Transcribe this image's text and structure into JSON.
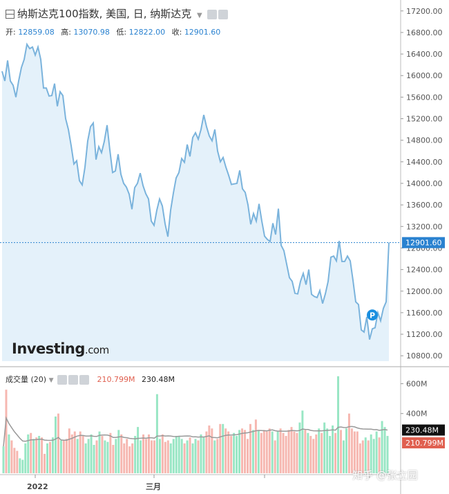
{
  "header": {
    "title": "纳斯达克100指数, 美国, 日, 纳斯达克",
    "ohlc": [
      {
        "label": "开",
        "value": "12859.08"
      },
      {
        "label": "高",
        "value": "13070.98"
      },
      {
        "label": "低",
        "value": "12822.00"
      },
      {
        "label": "收",
        "value": "12901.60"
      }
    ]
  },
  "volume_header": {
    "label": "成交量 (20)",
    "value_a": "210.799M",
    "value_b": "230.48M"
  },
  "logo": {
    "main": "Investing",
    "suffix": ".com"
  },
  "watermark": "知乎 @张立园",
  "colors": {
    "line": "#7ab3dc",
    "area": "#e4f1fa",
    "up": "#98e6c4",
    "down": "#f6b7b0",
    "ma": "#999999",
    "price_tag": "#2a82d0",
    "vol_tag": "#e06050"
  },
  "chart_data": [
    {
      "type": "area",
      "x": [
        0,
        1,
        2,
        3,
        4,
        5,
        6,
        7,
        8,
        9,
        10,
        11,
        12,
        13,
        14,
        15,
        16,
        17,
        18,
        19,
        20,
        21,
        22,
        23,
        24,
        25,
        26,
        27,
        28,
        29,
        30,
        31,
        32,
        33,
        34,
        35,
        36,
        37,
        38,
        39,
        40,
        41,
        42,
        43,
        44,
        45,
        46,
        47,
        48,
        49,
        50,
        51,
        52,
        53,
        54,
        55,
        56,
        57,
        58,
        59,
        60,
        61,
        62,
        63,
        64,
        65,
        66,
        67,
        68,
        69,
        70,
        71,
        72,
        73,
        74,
        75,
        76,
        77,
        78,
        79,
        80,
        81,
        82,
        83,
        84,
        85,
        86,
        87,
        88,
        89,
        90,
        91,
        92,
        93,
        94,
        95,
        96,
        97,
        98,
        99,
        100,
        101,
        102,
        103,
        104,
        105,
        106,
        107,
        108,
        109,
        110,
        111,
        112,
        113,
        114,
        115,
        116,
        117,
        118,
        119,
        120,
        121,
        122,
        123,
        124,
        125,
        126,
        127,
        128,
        129,
        130,
        131,
        132,
        133,
        134,
        135,
        136,
        137,
        138,
        139,
        140
      ],
      "y": [
        16080,
        15900,
        16280,
        15900,
        15820,
        15600,
        15900,
        16150,
        16300,
        16580,
        16500,
        16530,
        16380,
        16530,
        16300,
        15770,
        15770,
        15620,
        15630,
        15850,
        15430,
        15700,
        15630,
        15200,
        15000,
        14700,
        14360,
        14420,
        14050,
        13970,
        14300,
        14790,
        15050,
        15120,
        14440,
        14680,
        14570,
        14780,
        15080,
        14620,
        14200,
        14230,
        14540,
        14170,
        14000,
        13930,
        13800,
        13520,
        13920,
        14000,
        14190,
        13960,
        13810,
        13710,
        13300,
        13220,
        13500,
        13710,
        13580,
        13250,
        13010,
        13500,
        13820,
        14100,
        14200,
        14460,
        14390,
        14720,
        14500,
        14850,
        14940,
        14820,
        15000,
        15270,
        15050,
        14880,
        14790,
        15000,
        14600,
        14400,
        14480,
        14300,
        14150,
        13980,
        13990,
        14000,
        14240,
        13900,
        13830,
        13600,
        13240,
        13440,
        13300,
        13620,
        13300,
        13020,
        12960,
        12920,
        13260,
        13050,
        13530,
        12850,
        12750,
        12500,
        12250,
        12180,
        11960,
        11950,
        12180,
        12330,
        12120,
        12400,
        11940,
        11900,
        11880,
        12010,
        11770,
        11950,
        12180,
        12630,
        12650,
        12560,
        12930,
        12550,
        12550,
        12650,
        12560,
        12200,
        11800,
        11750,
        11280,
        11240,
        11520,
        11100,
        11300,
        11320,
        11600,
        11450,
        11680,
        11800,
        12900
      ],
      "ylim": [
        10700,
        17300
      ],
      "yticks": [
        "17200.00",
        "16800.00",
        "16400.00",
        "16000.00",
        "15600.00",
        "15200.00",
        "14800.00",
        "14400.00",
        "14000.00",
        "13600.00",
        "13200.00",
        "12800.00",
        "12400.00",
        "12000.00",
        "11600.00",
        "11200.00",
        "10800.00"
      ],
      "xticks": [
        "2022",
        "三月"
      ],
      "last_value": "12901.60",
      "marker": "P"
    },
    {
      "type": "bar",
      "y": [
        180,
        560,
        260,
        220,
        170,
        150,
        100,
        90,
        200,
        260,
        270,
        230,
        240,
        250,
        240,
        130,
        200,
        210,
        240,
        380,
        400,
        220,
        220,
        230,
        300,
        260,
        280,
        230,
        280,
        250,
        200,
        230,
        260,
        190,
        220,
        280,
        250,
        220,
        210,
        270,
        190,
        230,
        290,
        260,
        200,
        230,
        180,
        200,
        250,
        310,
        220,
        260,
        230,
        260,
        220,
        220,
        530,
        230,
        260,
        210,
        220,
        200,
        230,
        250,
        250,
        230,
        200,
        220,
        240,
        200,
        230,
        220,
        260,
        240,
        280,
        320,
        300,
        220,
        230,
        330,
        330,
        300,
        280,
        250,
        270,
        250,
        290,
        300,
        290,
        230,
        330,
        290,
        360,
        290,
        270,
        290,
        280,
        300,
        280,
        220,
        280,
        300,
        270,
        250,
        290,
        310,
        280,
        270,
        340,
        420,
        290,
        270,
        250,
        230,
        260,
        300,
        270,
        340,
        300,
        250,
        320,
        270,
        650,
        290,
        220,
        300,
        400,
        300,
        280,
        280,
        200,
        220,
        240,
        220,
        260,
        230,
        280,
        240,
        350,
        310,
        250
      ],
      "ylim": [
        0,
        700
      ],
      "yticks": [
        "600M",
        "400M"
      ],
      "ma_label": "230.48M",
      "vol_label": "210.799M"
    }
  ]
}
